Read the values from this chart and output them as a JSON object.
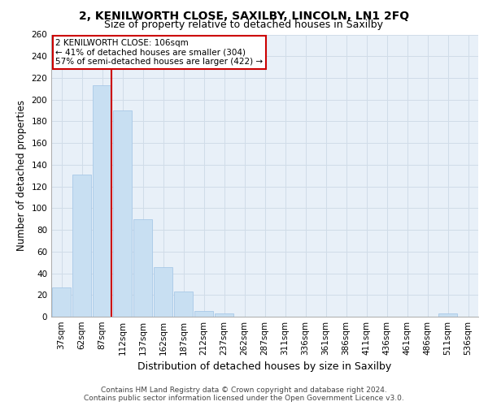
{
  "title1": "2, KENILWORTH CLOSE, SAXILBY, LINCOLN, LN1 2FQ",
  "title2": "Size of property relative to detached houses in Saxilby",
  "xlabel": "Distribution of detached houses by size in Saxilby",
  "ylabel": "Number of detached properties",
  "categories": [
    "37sqm",
    "62sqm",
    "87sqm",
    "112sqm",
    "137sqm",
    "162sqm",
    "187sqm",
    "212sqm",
    "237sqm",
    "262sqm",
    "287sqm",
    "311sqm",
    "336sqm",
    "361sqm",
    "386sqm",
    "411sqm",
    "436sqm",
    "461sqm",
    "486sqm",
    "511sqm",
    "536sqm"
  ],
  "values": [
    27,
    131,
    213,
    190,
    90,
    46,
    23,
    5,
    3,
    0,
    0,
    0,
    0,
    0,
    0,
    0,
    0,
    0,
    0,
    3,
    0
  ],
  "bar_color": "#c8dff2",
  "bar_edge_color": "#a8c8e8",
  "vline_color": "#cc0000",
  "vline_pos": 2.5,
  "annotation_text": "2 KENILWORTH CLOSE: 106sqm\n← 41% of detached houses are smaller (304)\n57% of semi-detached houses are larger (422) →",
  "annotation_box_color": "#ffffff",
  "annotation_box_edge": "#cc0000",
  "ylim": [
    0,
    260
  ],
  "yticks": [
    0,
    20,
    40,
    60,
    80,
    100,
    120,
    140,
    160,
    180,
    200,
    220,
    240,
    260
  ],
  "footer": "Contains HM Land Registry data © Crown copyright and database right 2024.\nContains public sector information licensed under the Open Government Licence v3.0.",
  "bg_color": "#e8f0f8",
  "grid_color": "#d0dce8",
  "title1_fontsize": 10,
  "title2_fontsize": 9,
  "xlabel_fontsize": 9,
  "ylabel_fontsize": 8.5,
  "tick_fontsize": 7.5,
  "footer_fontsize": 6.5,
  "annotation_fontsize": 7.5
}
